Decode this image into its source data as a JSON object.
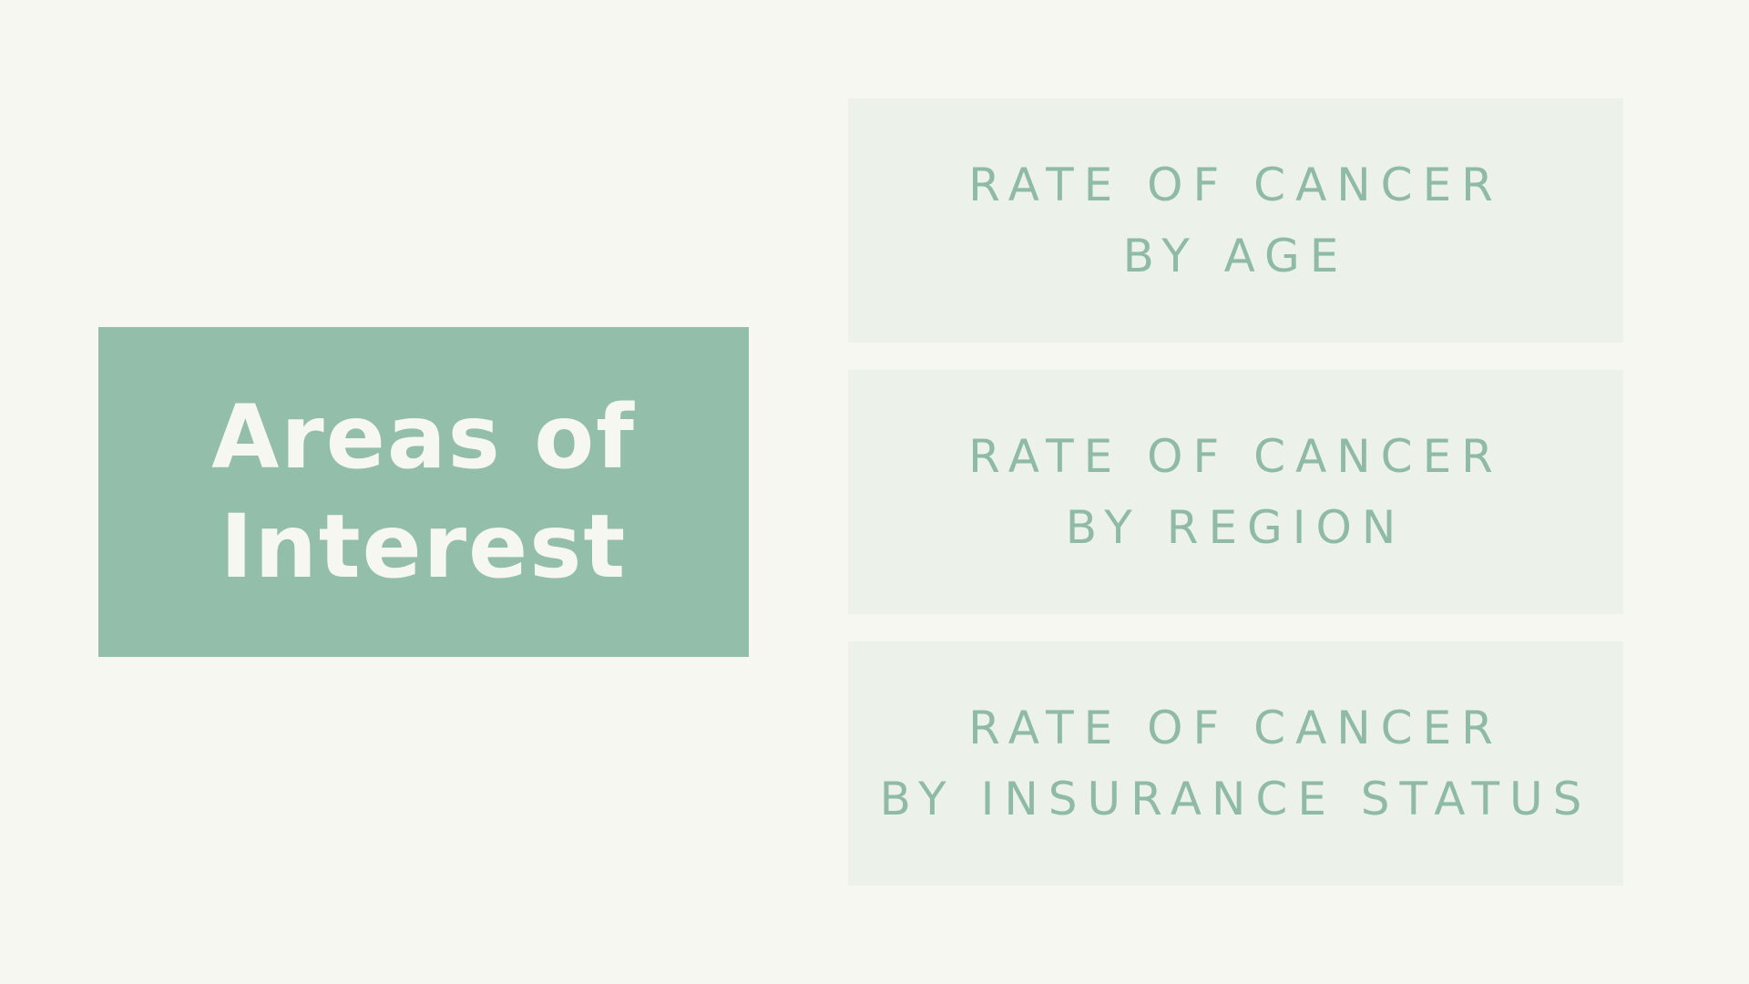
{
  "slide": {
    "title_lines": [
      "Areas of",
      "Interest"
    ],
    "topics": [
      {
        "line1": "RATE OF CANCER",
        "line2": "BY AGE"
      },
      {
        "line1": "RATE OF CANCER",
        "line2": "BY REGION"
      },
      {
        "line1": "RATE OF CANCER",
        "line2": "BY INSURANCE STATUS"
      }
    ]
  },
  "colors": {
    "background": "#f6f7f1",
    "accent": "#93bea9",
    "card": "#ecf1e9",
    "card_text": "#8fbaa5",
    "title_text": "#f7f7f1"
  }
}
